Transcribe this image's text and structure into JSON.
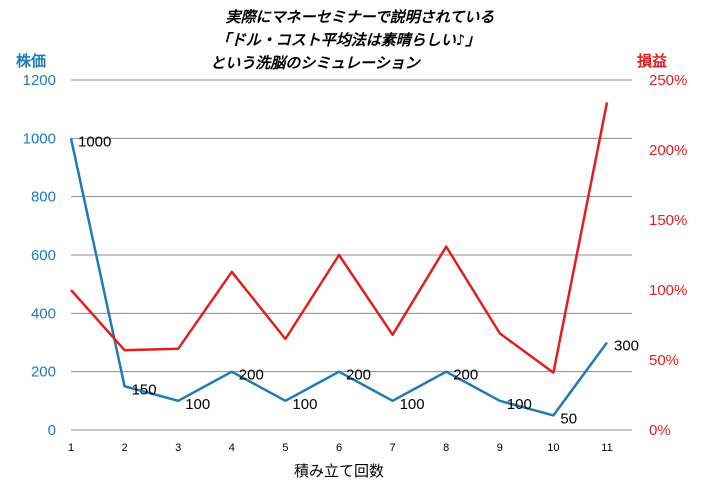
{
  "chart_data": {
    "type": "line",
    "title_lines": [
      "実際にマネーセミナーで説明されている",
      "「ドル・コスト平均法は素晴らしい♪」",
      "という洗脳のシミュレーション"
    ],
    "xlabel": "積み立て回数",
    "x": [
      1,
      2,
      3,
      4,
      5,
      6,
      7,
      8,
      9,
      10,
      11
    ],
    "y_left": {
      "label": "株価",
      "range": [
        0,
        1200
      ],
      "ticks": [
        0,
        200,
        400,
        600,
        800,
        1000,
        1200
      ],
      "color": "#1f7ab8"
    },
    "y_right": {
      "label": "損益",
      "range": [
        0,
        250
      ],
      "ticks": [
        0,
        50,
        100,
        150,
        200,
        250
      ],
      "tick_suffix": "%",
      "color": "#e01f1f"
    },
    "grid": true,
    "series": [
      {
        "axis": "left",
        "color": "#1f7ab8",
        "values": [
          1000,
          150,
          100,
          200,
          100,
          200,
          100,
          200,
          100,
          50,
          300
        ],
        "data_labels": [
          "1000",
          "150",
          "100",
          "200",
          "100",
          "200",
          "100",
          "200",
          "100",
          "50",
          "300"
        ]
      },
      {
        "axis": "right",
        "color": "#e01f1f",
        "values": [
          100,
          57,
          58,
          113,
          65,
          125,
          68,
          131,
          69,
          41,
          234
        ]
      }
    ]
  }
}
